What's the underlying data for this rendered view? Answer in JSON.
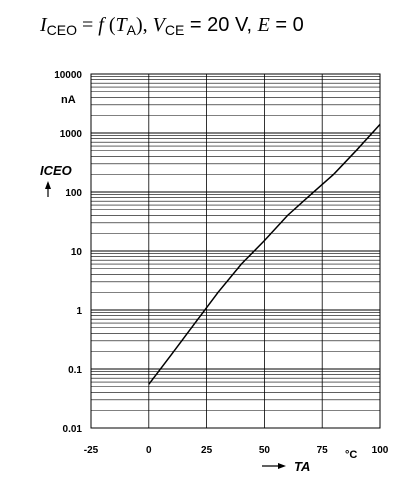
{
  "title": {
    "y_symbol": "I",
    "y_sub": "CEO",
    "eq": " = ",
    "func": "f",
    "open": " (",
    "x_symbol": "T",
    "x_sub": "A",
    "close": "), ",
    "v_symbol": "V",
    "v_sub": "CE",
    "v_value": " = 20 V, ",
    "e_symbol": "E",
    "e_value": " = 0"
  },
  "chart_data": {
    "type": "line",
    "title": "ICEO = f (TA), VCE = 20 V, E = 0",
    "xlabel": "TA",
    "xunit": "°C",
    "ylabel": "ICEO",
    "yunit": "nA",
    "xlim": [
      -25,
      100
    ],
    "ylim": [
      0.01,
      10000
    ],
    "yscale": "log",
    "grid": true,
    "x_ticks": [
      "-25",
      "0",
      "25",
      "50",
      "75",
      "100"
    ],
    "y_ticks": [
      "0.01",
      "0.1",
      "1",
      "10",
      "100",
      "1000",
      "10000"
    ],
    "series": [
      {
        "x": [
          0,
          10,
          20,
          30,
          40,
          50,
          60,
          70,
          80,
          90,
          100
        ],
        "y": [
          0.055,
          0.18,
          0.6,
          2.0,
          6.0,
          15,
          40,
          90,
          200,
          520,
          1400
        ]
      }
    ]
  },
  "colors": {
    "curve": "#000000",
    "grid": "#000000",
    "frame": "#000000"
  }
}
